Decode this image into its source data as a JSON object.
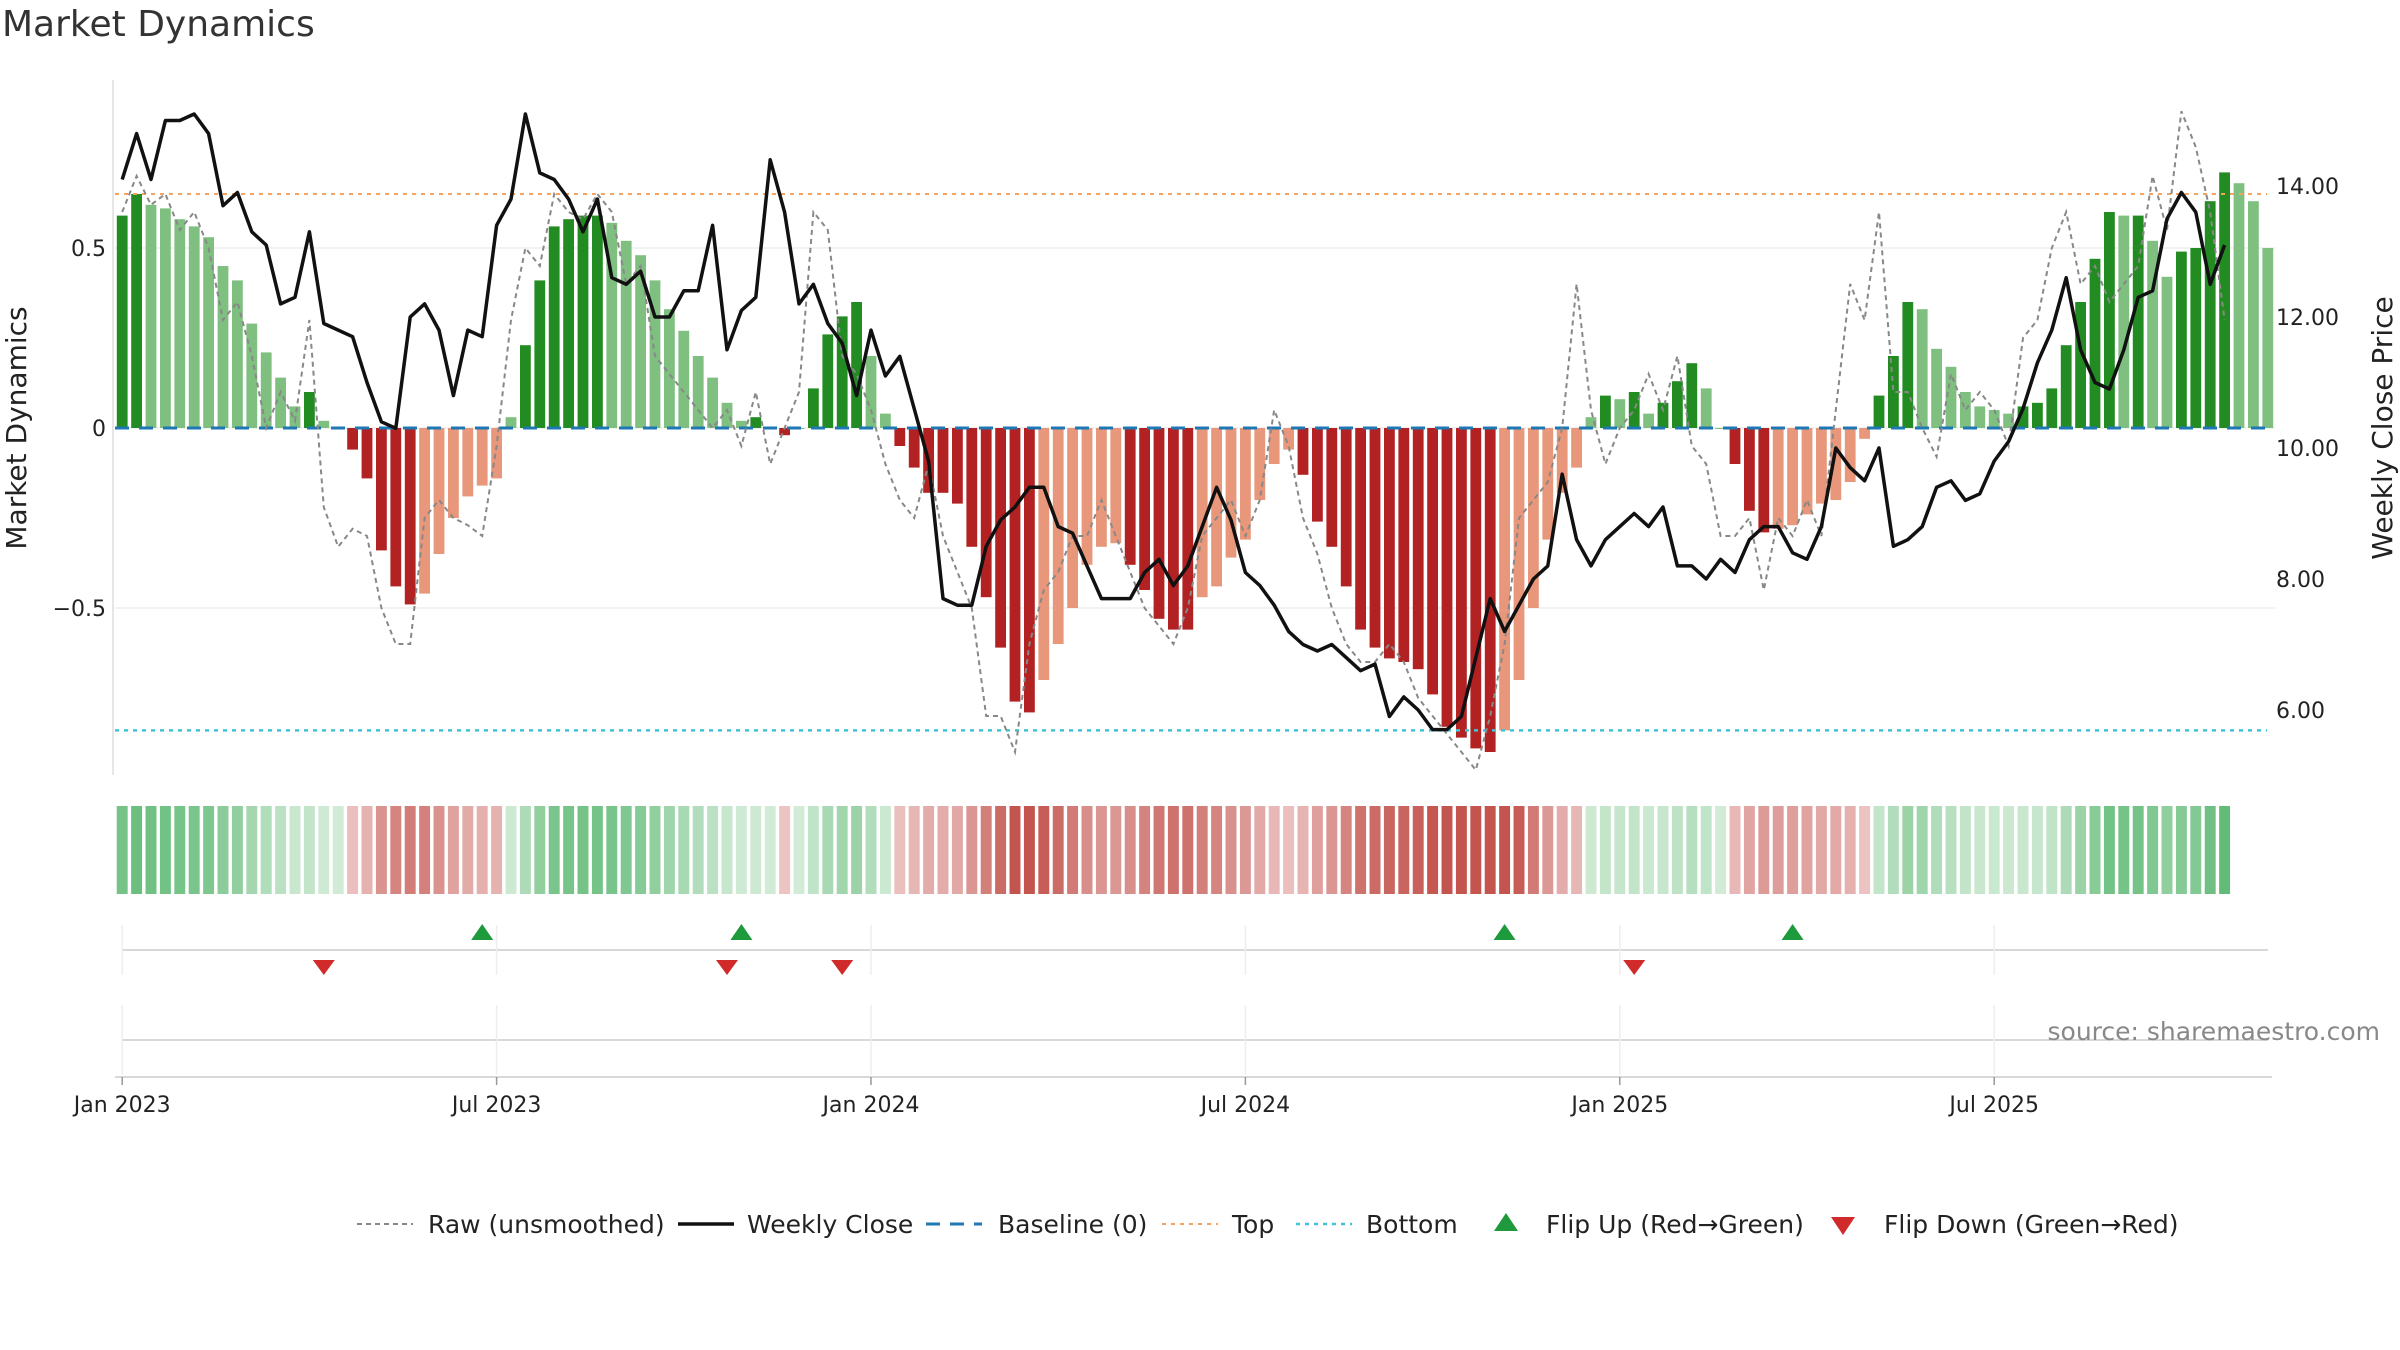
{
  "title": "Market Dynamics",
  "source": "source: sharemaestro.com",
  "colors": {
    "strong_green": "#228b22",
    "light_green": "#7fbf7f",
    "strong_red": "#b22222",
    "light_red": "#e8977a",
    "close_line": "#111111",
    "raw_line": "#888888",
    "baseline": "#1f77b4",
    "top_line": "#f4a460",
    "bottom_line": "#40c4d8",
    "flip_up": "#1e9a3c",
    "flip_down": "#d02a2a"
  },
  "chart_data": {
    "type": "bar",
    "title": "Market Dynamics",
    "ylabel": "Market Dynamics",
    "y2label": "Weekly Close Price",
    "ylim": [
      -0.96,
      0.96
    ],
    "y2lim": [
      5.0,
      15.4
    ],
    "yticks": [
      {
        "value": 0.5,
        "label": "0.5"
      },
      {
        "value": 0,
        "label": "0"
      },
      {
        "value": -0.5,
        "label": "−0.5"
      }
    ],
    "y2ticks": [
      {
        "value": 14,
        "label": "14.00"
      },
      {
        "value": 12,
        "label": "12.00"
      },
      {
        "value": 10,
        "label": "10.00"
      },
      {
        "value": 8,
        "label": "8.00"
      },
      {
        "value": 6,
        "label": "6.00"
      }
    ],
    "xticks": [
      {
        "week": 0,
        "label": "Jan 2023"
      },
      {
        "week": 26,
        "label": "Jul 2023"
      },
      {
        "week": 52,
        "label": "Jan 2024"
      },
      {
        "week": 78,
        "label": "Jul 2024"
      },
      {
        "week": 104,
        "label": "Jan 2025"
      },
      {
        "week": 130,
        "label": "Jul 2025"
      }
    ],
    "x_start": "2022-12-26",
    "x_step": "1 week",
    "top_level": 0.65,
    "bottom_level": -0.84,
    "grid": true,
    "legend_position": "bottom",
    "values": [
      0.59,
      0.65,
      0.62,
      0.61,
      0.58,
      0.56,
      0.53,
      0.45,
      0.41,
      0.29,
      0.21,
      0.14,
      0.06,
      0.1,
      0.02,
      0.0,
      -0.06,
      -0.14,
      -0.34,
      -0.44,
      -0.49,
      -0.46,
      -0.35,
      -0.25,
      -0.19,
      -0.16,
      -0.14,
      0.03,
      0.23,
      0.41,
      0.56,
      0.58,
      0.59,
      0.59,
      0.57,
      0.52,
      0.48,
      0.41,
      0.33,
      0.27,
      0.2,
      0.14,
      0.07,
      0.02,
      0.03,
      0.0,
      -0.02,
      0.0,
      0.11,
      0.26,
      0.31,
      0.35,
      0.2,
      0.04,
      -0.05,
      -0.11,
      -0.18,
      -0.18,
      -0.21,
      -0.33,
      -0.47,
      -0.61,
      -0.76,
      -0.79,
      -0.7,
      -0.6,
      -0.5,
      -0.38,
      -0.33,
      -0.32,
      -0.38,
      -0.45,
      -0.53,
      -0.56,
      -0.56,
      -0.47,
      -0.44,
      -0.36,
      -0.31,
      -0.2,
      -0.1,
      -0.06,
      -0.13,
      -0.26,
      -0.33,
      -0.44,
      -0.56,
      -0.61,
      -0.64,
      -0.65,
      -0.67,
      -0.74,
      -0.83,
      -0.86,
      -0.89,
      -0.9,
      -0.84,
      -0.7,
      -0.5,
      -0.31,
      -0.18,
      -0.11,
      0.03,
      0.09,
      0.08,
      0.1,
      0.04,
      0.07,
      0.13,
      0.18,
      0.11,
      0.0,
      -0.1,
      -0.23,
      -0.29,
      -0.28,
      -0.27,
      -0.24,
      -0.21,
      -0.2,
      -0.15,
      -0.03,
      0.09,
      0.2,
      0.35,
      0.33,
      0.22,
      0.17,
      0.1,
      0.06,
      0.05,
      0.04,
      0.06,
      0.07,
      0.11,
      0.23,
      0.35,
      0.47,
      0.6,
      0.59,
      0.59,
      0.52,
      0.42,
      0.49,
      0.5,
      0.63,
      0.71,
      0.68,
      0.63,
      0.5
    ],
    "series": [
      {
        "name": "Raw (unsmoothed)",
        "style": "dashed",
        "values": [
          0.6,
          0.7,
          0.62,
          0.65,
          0.55,
          0.6,
          0.5,
          0.3,
          0.35,
          0.2,
          0.0,
          0.1,
          0.02,
          0.3,
          -0.22,
          -0.33,
          -0.28,
          -0.3,
          -0.5,
          -0.6,
          -0.6,
          -0.25,
          -0.2,
          -0.25,
          -0.27,
          -0.3,
          -0.05,
          0.3,
          0.5,
          0.45,
          0.65,
          0.6,
          0.58,
          0.65,
          0.6,
          0.4,
          0.45,
          0.2,
          0.15,
          0.1,
          0.05,
          0.0,
          0.05,
          -0.05,
          0.1,
          -0.1,
          0.0,
          0.1,
          0.6,
          0.55,
          0.2,
          0.15,
          0.05,
          -0.1,
          -0.2,
          -0.25,
          -0.1,
          -0.3,
          -0.4,
          -0.5,
          -0.8,
          -0.8,
          -0.9,
          -0.6,
          -0.45,
          -0.4,
          -0.3,
          -0.3,
          -0.2,
          -0.3,
          -0.4,
          -0.5,
          -0.55,
          -0.6,
          -0.5,
          -0.3,
          -0.25,
          -0.2,
          -0.3,
          -0.2,
          0.05,
          -0.05,
          -0.25,
          -0.35,
          -0.5,
          -0.6,
          -0.65,
          -0.65,
          -0.6,
          -0.65,
          -0.75,
          -0.8,
          -0.85,
          -0.9,
          -0.95,
          -0.8,
          -0.6,
          -0.25,
          -0.2,
          -0.15,
          0.0,
          0.4,
          0.05,
          -0.1,
          0.0,
          0.05,
          0.15,
          0.05,
          0.2,
          -0.05,
          -0.1,
          -0.3,
          -0.3,
          -0.25,
          -0.45,
          -0.25,
          -0.3,
          -0.2,
          -0.3,
          0.05,
          0.4,
          0.3,
          0.6,
          0.1,
          0.1,
          0.0,
          -0.08,
          0.15,
          0.05,
          0.1,
          0.05,
          -0.05,
          0.25,
          0.3,
          0.5,
          0.6,
          0.4,
          0.45,
          0.35,
          0.4,
          0.45,
          0.7,
          0.55,
          0.88,
          0.78,
          0.6,
          0.3
        ]
      },
      {
        "name": "Weekly Close",
        "axis": "right",
        "values": [
          14.1,
          14.8,
          14.1,
          15.0,
          15.0,
          15.1,
          14.8,
          13.7,
          13.9,
          13.3,
          13.1,
          12.2,
          12.3,
          13.3,
          11.9,
          11.8,
          11.7,
          11.0,
          10.4,
          10.3,
          12.0,
          12.2,
          11.8,
          10.8,
          11.8,
          11.7,
          13.4,
          13.8,
          15.1,
          14.2,
          14.1,
          13.8,
          13.3,
          13.8,
          12.6,
          12.5,
          12.7,
          12.0,
          12.0,
          12.4,
          12.4,
          13.4,
          11.5,
          12.1,
          12.3,
          14.4,
          13.6,
          12.2,
          12.5,
          11.9,
          11.6,
          10.8,
          11.8,
          11.1,
          11.4,
          10.6,
          9.8,
          7.7,
          7.6,
          7.6,
          8.5,
          8.9,
          9.1,
          9.4,
          9.4,
          8.8,
          8.7,
          8.2,
          7.7,
          7.7,
          7.7,
          8.1,
          8.3,
          7.9,
          8.2,
          8.8,
          9.4,
          8.9,
          8.1,
          7.9,
          7.6,
          7.2,
          7.0,
          6.9,
          7.0,
          6.8,
          6.6,
          6.7,
          5.9,
          6.2,
          6.0,
          5.7,
          5.7,
          5.9,
          6.8,
          7.7,
          7.2,
          7.6,
          8.0,
          8.2,
          9.6,
          8.6,
          8.2,
          8.6,
          8.8,
          9.0,
          8.8,
          9.1,
          8.2,
          8.2,
          8.0,
          8.3,
          8.1,
          8.6,
          8.8,
          8.8,
          8.4,
          8.3,
          8.8,
          10.0,
          9.7,
          9.5,
          10.0,
          8.5,
          8.6,
          8.8,
          9.4,
          9.5,
          9.2,
          9.3,
          9.8,
          10.1,
          10.6,
          11.3,
          11.8,
          12.6,
          11.5,
          11.0,
          10.9,
          11.5,
          12.3,
          12.4,
          13.5,
          13.9,
          13.6,
          12.5,
          13.1
        ]
      },
      {
        "name": "Baseline (0)",
        "style": "dash",
        "value": 0
      },
      {
        "name": "Top",
        "style": "dotted",
        "value": 0.65
      },
      {
        "name": "Bottom",
        "style": "dotted",
        "value": -0.84
      },
      {
        "name": "Flip Up (Red→Green)",
        "marker": "triangle-up",
        "weeks": [
          25,
          43,
          96,
          116
        ]
      },
      {
        "name": "Flip Down (Green→Red)",
        "marker": "triangle-down",
        "weeks": [
          14,
          42,
          50,
          105
        ]
      }
    ]
  }
}
